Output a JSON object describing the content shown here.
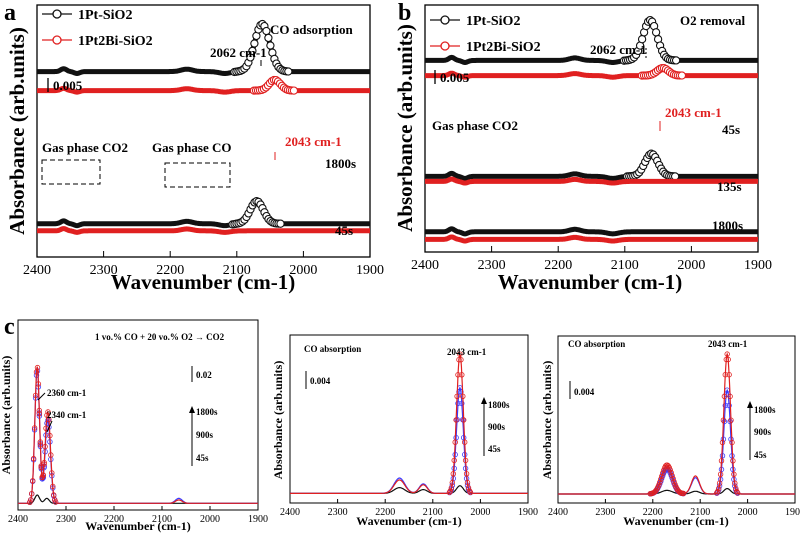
{
  "colors": {
    "black_series": "#111111",
    "red_series": "#e02020",
    "blue_series": "#3a3aff",
    "axis": "#000000"
  },
  "panel_letters": [
    "a",
    "b",
    "c"
  ],
  "chart_data": [
    {
      "panel": "a",
      "type": "line",
      "title": "CO adsorption",
      "xlabel": "Wavenumber (cm-1)",
      "ylabel": "Absorbance (arb.units)",
      "xlim": [
        2400,
        1900
      ],
      "xticks": [
        "2400",
        "2300",
        "2200",
        "2100",
        "2000",
        "1900"
      ],
      "scale_bar": "0.005",
      "legend": [
        {
          "name": "1Pt-SiO2",
          "color": "#111111"
        },
        {
          "name": "1Pt2Bi-SiO2",
          "color": "#e02020"
        }
      ],
      "time_labels": [
        "1800s",
        "45s"
      ],
      "annotations": {
        "peak_pt": "2062 cm-1",
        "peak_ptbi": "2043 cm-1",
        "gas_co2": "Gas phase CO2",
        "gas_co": "Gas phase CO"
      },
      "series": [
        {
          "name": "1Pt-SiO2 1800s",
          "color": "#111111",
          "baseline": 0.8,
          "peaks": [
            [
              2062,
              16,
              2.0
            ]
          ]
        },
        {
          "name": "1Pt2Bi-SiO2 1800s",
          "color": "#e02020",
          "baseline": 0.0,
          "peaks": [
            [
              2043,
              12,
              0.45
            ]
          ]
        },
        {
          "name": "1Pt-SiO2 45s",
          "color": "#111111",
          "baseline": -5.6,
          "peaks": [
            [
              2070,
              14,
              0.95
            ]
          ]
        },
        {
          "name": "1Pt2Bi-SiO2 45s",
          "color": "#e02020",
          "baseline": -5.9,
          "peaks": []
        }
      ]
    },
    {
      "panel": "b",
      "type": "line",
      "title": "O2 removal",
      "xlabel": "Wavenumber (cm-1)",
      "ylabel": "Absorbance (arb.units)",
      "xlim": [
        2400,
        1900
      ],
      "xticks": [
        "2400",
        "2300",
        "2200",
        "2100",
        "2000",
        "1900"
      ],
      "scale_bar": "0.005",
      "legend": [
        {
          "name": "1Pt-SiO2",
          "color": "#111111"
        },
        {
          "name": "1Pt2Bi-SiO2",
          "color": "#e02020"
        }
      ],
      "time_labels": [
        "45s",
        "135s",
        "1800s"
      ],
      "annotations": {
        "peak_pt": "2062 cm-1",
        "peak_ptbi": "2043 cm-1",
        "gas_co2": "Gas phase CO2"
      },
      "series": [
        {
          "name": "1Pt-SiO2 45s",
          "color": "#111111",
          "baseline": 0.6,
          "peaks": [
            [
              2062,
              15,
              1.6
            ]
          ]
        },
        {
          "name": "1Pt2Bi-SiO2 45s",
          "color": "#e02020",
          "baseline": 0.0,
          "peaks": [
            [
              2043,
              12,
              0.3
            ]
          ]
        },
        {
          "name": "1Pt-SiO2 135s",
          "color": "#111111",
          "baseline": -4.0,
          "peaks": [
            [
              2060,
              14,
              0.9
            ]
          ]
        },
        {
          "name": "1Pt2Bi-SiO2 135s",
          "color": "#e02020",
          "baseline": -4.2,
          "peaks": []
        },
        {
          "name": "1Pt-SiO2 1800s",
          "color": "#111111",
          "baseline": -6.2,
          "peaks": []
        },
        {
          "name": "1Pt2Bi-SiO2 1800s",
          "color": "#e02020",
          "baseline": -6.5,
          "peaks": []
        }
      ]
    },
    {
      "panel": "c1",
      "type": "scatter",
      "title": "1 vo.% CO + 20 vo.% O2 → CO2",
      "xlabel": "Wavenumber (cm-1)",
      "ylabel": "Absorbance (arb.units)",
      "xlim": [
        2400,
        1900
      ],
      "xticks": [
        "2400",
        "2300",
        "2200",
        "2100",
        "2000",
        "1900"
      ],
      "scale_bar": "0.02",
      "time_labels": [
        "1800s",
        "900s",
        "45s"
      ],
      "annotations": {
        "peak1": "2360 cm-1",
        "peak2": "2340 cm-1"
      },
      "series": [
        {
          "name": "45s",
          "color": "#111111",
          "peaks": [
            [
              2360,
              7,
              0.005
            ],
            [
              2340,
              7,
              0.003
            ]
          ]
        },
        {
          "name": "900s",
          "color": "#3a3aff",
          "peaks": [
            [
              2360,
              7,
              0.08
            ],
            [
              2338,
              8,
              0.05
            ],
            [
              2065,
              10,
              0.003
            ]
          ]
        },
        {
          "name": "1800s",
          "color": "#e02020",
          "peaks": [
            [
              2360,
              7,
              0.082
            ],
            [
              2338,
              8,
              0.055
            ],
            [
              2065,
              10,
              0.002
            ]
          ]
        }
      ]
    },
    {
      "panel": "c2",
      "type": "scatter",
      "title": "CO absorption",
      "xlabel": "Wavenumber (cm-1)",
      "ylabel": "Absorbance (arb.units)",
      "xlim": [
        2400,
        1900
      ],
      "xticks": [
        "2400",
        "2300",
        "2200",
        "2100",
        "2000",
        "1900"
      ],
      "scale_bar": "0.004",
      "time_labels": [
        "1800s",
        "900s",
        "45s"
      ],
      "annotations": {
        "peak": "2043 cm-1"
      },
      "series": [
        {
          "name": "45s",
          "color": "#111111",
          "peaks": [
            [
              2170,
              16,
              0.0006
            ],
            [
              2120,
              12,
              0.0004
            ],
            [
              2043,
              10,
              0.0008
            ]
          ]
        },
        {
          "name": "900s",
          "color": "#3a3aff",
          "peaks": [
            [
              2170,
              16,
              0.0016
            ],
            [
              2120,
              12,
              0.001
            ],
            [
              2043,
              10,
              0.011
            ]
          ]
        },
        {
          "name": "1800s",
          "color": "#e02020",
          "peaks": [
            [
              2170,
              16,
              0.0014
            ],
            [
              2120,
              12,
              0.0009
            ],
            [
              2043,
              10,
              0.0145
            ]
          ]
        }
      ]
    },
    {
      "panel": "c3",
      "type": "scatter",
      "title": "CO absorption",
      "xlabel": "Wavenumber (cm-1)",
      "ylabel": "Absorbance (arb.units)",
      "xlim": [
        2400,
        1900
      ],
      "xticks": [
        "2400",
        "2300",
        "2200",
        "2100",
        "2000",
        "1900"
      ],
      "scale_bar": "0.004",
      "time_labels": [
        "1800s",
        "900s",
        "45s"
      ],
      "annotations": {
        "peak": "2043 cm-1"
      },
      "series": [
        {
          "name": "45s",
          "color": "#111111",
          "peaks": [
            [
              2170,
              16,
              0.0004
            ],
            [
              2110,
              12,
              0.0003
            ],
            [
              2043,
              10,
              0.0006
            ]
          ]
        },
        {
          "name": "900s",
          "color": "#3a3aff",
          "peaks": [
            [
              2170,
              16,
              0.0028
            ],
            [
              2110,
              12,
              0.0018
            ],
            [
              2043,
              10,
              0.0115
            ]
          ]
        },
        {
          "name": "1800s",
          "color": "#e02020",
          "peaks": [
            [
              2170,
              16,
              0.0032
            ],
            [
              2110,
              12,
              0.002
            ],
            [
              2043,
              10,
              0.0155
            ]
          ]
        }
      ]
    }
  ]
}
